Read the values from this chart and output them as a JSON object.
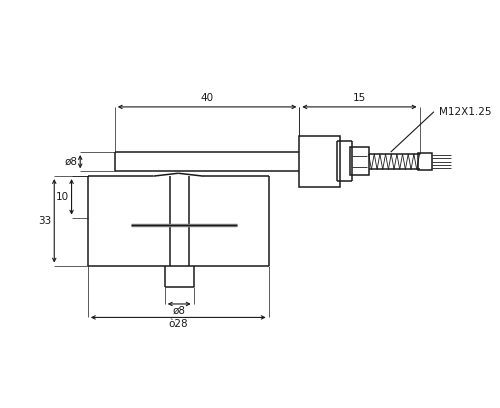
{
  "bg_color": "#ffffff",
  "line_color": "#1a1a1a",
  "dim_color": "#1a1a1a",
  "lw": 1.1,
  "tlw": 0.6,
  "fig_width": 5.0,
  "fig_height": 4.08,
  "dpi": 100,
  "ann": {
    "d40": "40",
    "d15": "15",
    "m12": "M12X1.25",
    "phi8t": "ø8",
    "d33": "33",
    "d10": "10",
    "phi8b": "ø8",
    "phi28": "ò28"
  }
}
